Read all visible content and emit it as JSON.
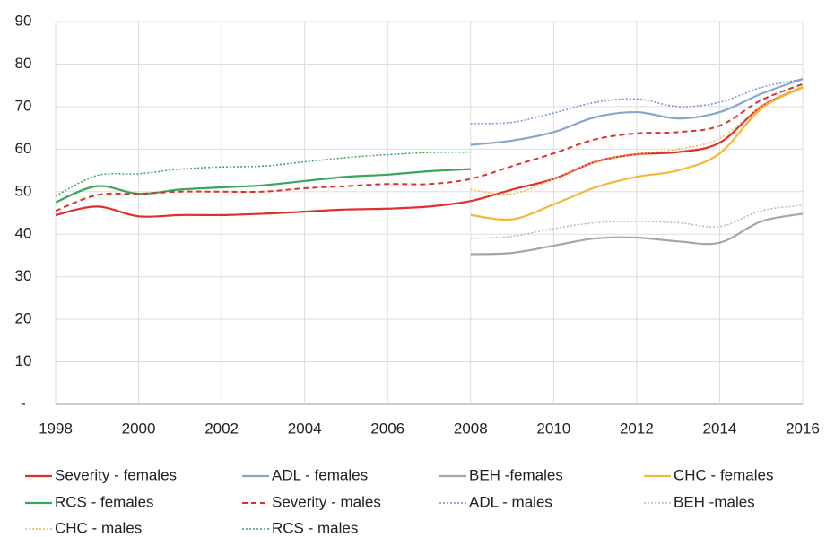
{
  "chart_data": {
    "type": "line",
    "x": [
      1998,
      1999,
      2000,
      2001,
      2002,
      2003,
      2004,
      2005,
      2006,
      2007,
      2008,
      2009,
      2010,
      2011,
      2012,
      2013,
      2014,
      2015,
      2016
    ],
    "xlim": [
      1998,
      2016
    ],
    "xticks": [
      1998,
      2000,
      2002,
      2004,
      2006,
      2008,
      2010,
      2012,
      2014,
      2016
    ],
    "ylim": [
      0,
      90
    ],
    "yticks": [
      {
        "value": 0,
        "label": "-"
      },
      10,
      20,
      30,
      40,
      50,
      60,
      70,
      80,
      90
    ],
    "grid": true,
    "series": [
      {
        "name": "Severity - females",
        "color": "#e0302e",
        "dash": "solid",
        "values": [
          44.5,
          46.5,
          44.2,
          44.5,
          44.5,
          44.8,
          45.3,
          45.8,
          46,
          46.5,
          47.8,
          50.5,
          53,
          57,
          58.8,
          59.3,
          61.5,
          70,
          74.5
        ]
      },
      {
        "name": "ADL - females",
        "color": "#86a6cf",
        "dash": "solid",
        "values": [
          null,
          null,
          null,
          null,
          null,
          null,
          null,
          null,
          null,
          null,
          61,
          62,
          64,
          67.5,
          68.7,
          67.2,
          68.7,
          73,
          76.5
        ]
      },
      {
        "name": "BEH -females",
        "color": "#a6a6a6",
        "dash": "solid",
        "values": [
          null,
          null,
          null,
          null,
          null,
          null,
          null,
          null,
          null,
          null,
          35.3,
          35.6,
          37.3,
          39,
          39.2,
          38.3,
          38,
          43,
          44.8
        ]
      },
      {
        "name": "CHC - females",
        "color": "#f5b738",
        "dash": "solid",
        "values": [
          null,
          null,
          null,
          null,
          null,
          null,
          null,
          null,
          null,
          null,
          44.5,
          43.5,
          47,
          51,
          53.5,
          55,
          59,
          69.5,
          74.5
        ]
      },
      {
        "name": "RCS - females",
        "color": "#3aa65a",
        "dash": "solid",
        "values": [
          47.5,
          51.3,
          49.5,
          50.5,
          51,
          51.5,
          52.5,
          53.5,
          54,
          54.8,
          55.3,
          null,
          null,
          null,
          null,
          null,
          null,
          null,
          null
        ]
      },
      {
        "name": "Severity - males",
        "color": "#e0302e",
        "dash": "dashed",
        "values": [
          45.5,
          49.2,
          49.5,
          50,
          50,
          50,
          50.8,
          51.3,
          51.8,
          51.8,
          53,
          56,
          59,
          62.3,
          63.7,
          64,
          65.5,
          71.5,
          75.3
        ]
      },
      {
        "name": "ADL - males",
        "color": "#6f8fd8",
        "dash": "dotted",
        "values": [
          null,
          null,
          null,
          null,
          null,
          null,
          null,
          null,
          null,
          null,
          66,
          66.3,
          68.5,
          71,
          71.8,
          70,
          71,
          74.5,
          76.5
        ]
      },
      {
        "name": "BEH -males",
        "color": "#b8b8b8",
        "dash": "dotted",
        "values": [
          null,
          null,
          null,
          null,
          null,
          null,
          null,
          null,
          null,
          null,
          39,
          39.5,
          41.3,
          42.7,
          43,
          42.7,
          41.8,
          45.5,
          46.8
        ]
      },
      {
        "name": "CHC - males",
        "color": "#f5b738",
        "dash": "dotted",
        "values": [
          null,
          null,
          null,
          null,
          null,
          null,
          null,
          null,
          null,
          null,
          50.5,
          49.5,
          53,
          57,
          58.8,
          60,
          62.5,
          70,
          74.8
        ]
      },
      {
        "name": "RCS - males",
        "color": "#3aa65a",
        "dash": "dotted",
        "values": [
          49,
          53.8,
          54.2,
          55.3,
          55.8,
          56,
          57,
          58,
          58.7,
          59.2,
          59.3,
          null,
          null,
          null,
          null,
          null,
          null,
          null,
          null
        ]
      }
    ]
  }
}
